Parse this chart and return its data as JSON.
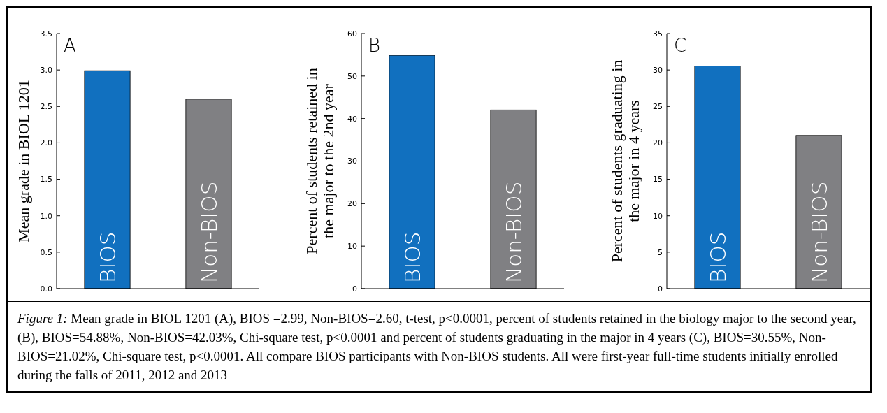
{
  "chart_data": [
    {
      "type": "bar",
      "title": "A",
      "ylabel": "Mean grade in BIOL 1201",
      "categories": [
        "BIOS",
        "Non-BIOS"
      ],
      "values": [
        2.99,
        2.6
      ],
      "colors": [
        "#1170bf",
        "#808083"
      ],
      "ylim": [
        0,
        3.5
      ],
      "yticks": [
        {
          "value": 0,
          "label": "0.0"
        },
        {
          "value": 0.5,
          "label": "0.5"
        },
        {
          "value": 1,
          "label": "1.0"
        },
        {
          "value": 1.5,
          "label": "1.5"
        },
        {
          "value": 2,
          "label": "2.0"
        },
        {
          "value": 2.5,
          "label": "2.5"
        },
        {
          "value": 3,
          "label": "3.0"
        },
        {
          "value": 3.5,
          "label": "3.5"
        }
      ]
    },
    {
      "type": "bar",
      "title": "B",
      "ylabel": "Percent of students retained in the major to the 2nd year",
      "categories": [
        "BIOS",
        "Non-BIOS"
      ],
      "values": [
        54.88,
        42.03
      ],
      "colors": [
        "#1170bf",
        "#808083"
      ],
      "ylim": [
        0,
        60
      ],
      "yticks": [
        0,
        10,
        20,
        30,
        40,
        50,
        60
      ]
    },
    {
      "type": "bar",
      "title": "C",
      "ylabel": "Percent of students graduating in the major in 4 years",
      "categories": [
        "BIOS",
        "Non-BIOS"
      ],
      "values": [
        30.55,
        21.02
      ],
      "colors": [
        "#1170bf",
        "#808083"
      ],
      "ylim": [
        0,
        35
      ],
      "yticks": [
        0,
        5,
        10,
        15,
        20,
        25,
        30,
        35
      ],
      "annotations": [
        "Figure 1: Mean grade in BIOL 1201 (A), BIOS =2.99, Non-BIOS=2.60, t-test, p<0.0001, percent of students retained in the biology major to the second year, (B), BIOS=54.88%, Non-BIOS=42.03%, Chi-square test, p<0.0001 and percent of students graduating in the major in 4 years (C), BIOS=30.55%, Non-BIOS=21.02%, Chi-square test, p<0.0001. All compare BIOS participants with Non-BIOS students. All were first-year full-time students initially enrolled during the falls of 2011, 2012 and 2013"
      ]
    }
  ]
}
